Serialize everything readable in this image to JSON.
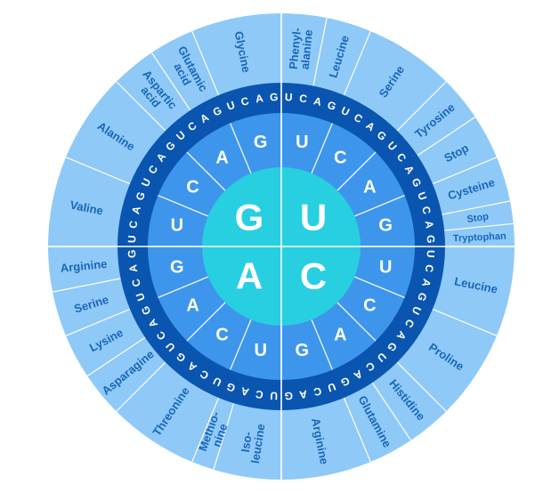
{
  "colors": {
    "outer_ring": "#8fc9f7",
    "third_ring": "#0a55b0",
    "second_ring": "#3d96ec",
    "center": "#28cfe0",
    "amino_text": "#1a66b8",
    "divider": "#ffffff"
  },
  "center": {
    "quadrants": [
      {
        "base": "G",
        "name": "first-base-g"
      },
      {
        "base": "U",
        "name": "first-base-u"
      },
      {
        "base": "C",
        "name": "first-base-c"
      },
      {
        "base": "A",
        "name": "first-base-a"
      }
    ]
  },
  "second_bases": [
    "U",
    "C",
    "A",
    "G",
    "U",
    "C",
    "A",
    "G",
    "U",
    "C",
    "A",
    "G",
    "U",
    "C",
    "A",
    "G"
  ],
  "third_bases": "UCAGUCAGUCAGUCAGUCAGUCAGUCAGUCAGUCAGUCAGUCAGUCAGUCAGUCAGUCAGUCAG",
  "amino_acids": [
    {
      "label": "Phenyl-\nalanine",
      "span": 2
    },
    {
      "label": "Leucine",
      "span": 2
    },
    {
      "label": "Serine",
      "span": 4
    },
    {
      "label": "Tyrosine",
      "span": 2
    },
    {
      "label": "Stop",
      "span": 2
    },
    {
      "label": "Cysteine",
      "span": 2
    },
    {
      "label": "Stop",
      "span": 1
    },
    {
      "label": "Tryptophan",
      "span": 1
    },
    {
      "label": "Leucine",
      "span": 4
    },
    {
      "label": "Proline",
      "span": 4
    },
    {
      "label": "Histidine",
      "span": 2
    },
    {
      "label": "Glutamine",
      "span": 2
    },
    {
      "label": "Arginine",
      "span": 4
    },
    {
      "label": "Iso-\nleucine",
      "span": 3
    },
    {
      "label": "Methio-\nnine",
      "span": 1
    },
    {
      "label": "Threonine",
      "span": 4
    },
    {
      "label": "Asparagine",
      "span": 2
    },
    {
      "label": "Lysine",
      "span": 2
    },
    {
      "label": "Serine",
      "span": 2
    },
    {
      "label": "Arginine",
      "span": 2
    },
    {
      "label": "Valine",
      "span": 4
    },
    {
      "label": "Alanine",
      "span": 4
    },
    {
      "label": "Aspartic\nacid",
      "span": 2
    },
    {
      "label": "Glutamic\nacid",
      "span": 2
    },
    {
      "label": "Glycine",
      "span": 4
    }
  ]
}
